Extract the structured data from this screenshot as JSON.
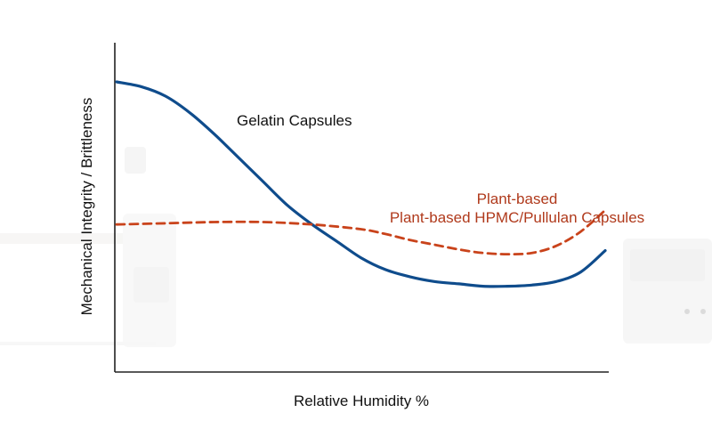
{
  "chart_data": {
    "type": "line",
    "title": "",
    "xlabel": "Relative Humidity %",
    "ylabel": "Mechanical Integrity / Brittleness",
    "xlim": [
      0,
      100
    ],
    "ylim": [
      0,
      100
    ],
    "grid": false,
    "x_ticks_shown": false,
    "y_ticks_shown": false,
    "series": [
      {
        "name": "Gelatin Capsules",
        "color": "#0f4c8c",
        "style": "solid",
        "x": [
          0,
          5,
          10,
          15,
          20,
          25,
          30,
          35,
          40,
          45,
          50,
          55,
          60,
          65,
          70,
          75,
          80,
          85,
          90,
          95,
          100
        ],
        "y": [
          100,
          98,
          94,
          87,
          78,
          68,
          58,
          48,
          40,
          33,
          26,
          21,
          18,
          16,
          15,
          14,
          14,
          14.5,
          16,
          20,
          29
        ]
      },
      {
        "name": "Plant-based HPMC/Pullulan Capsules",
        "color": "#c9431b",
        "style": "dashed",
        "x": [
          0,
          10,
          20,
          30,
          40,
          50,
          55,
          60,
          65,
          70,
          75,
          80,
          85,
          90,
          95,
          100
        ],
        "y": [
          40,
          40.5,
          41,
          41,
          40,
          38,
          36,
          33.5,
          31.5,
          29.5,
          28,
          27.5,
          28,
          31,
          37,
          46
        ]
      }
    ],
    "annotations": [
      {
        "text": "Gelatin Capsules",
        "color": "#111111"
      },
      {
        "text": "Plant-based",
        "color": "#b03a1c"
      },
      {
        "text": "Plant-based HPMC/Pullulan Capsules",
        "color": "#b03a1c"
      }
    ]
  }
}
